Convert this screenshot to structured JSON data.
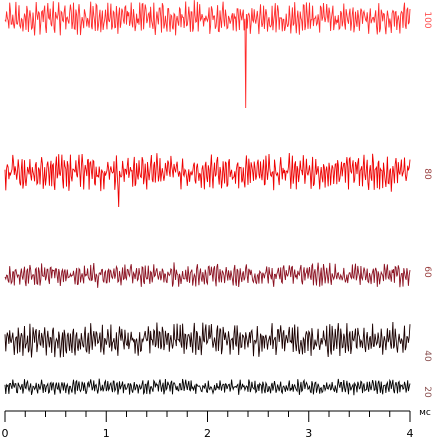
{
  "chart_data": {
    "type": "line",
    "title": "",
    "xlabel": "мс",
    "ylabel": "",
    "xlim": [
      0,
      4
    ],
    "ticks": [
      "0",
      "1",
      "2",
      "3",
      "4"
    ],
    "grid": false,
    "legend": "none",
    "channel_labels": [
      "100",
      "80",
      "60",
      "40",
      "20"
    ],
    "series": [
      {
        "level": 100,
        "color": "#ff2a2a",
        "amplitude": 15,
        "spike": {
          "x": 2.38,
          "depth": 90
        }
      },
      {
        "level": 80,
        "color": "#ee0000",
        "amplitude": 17,
        "spike": {
          "x": 1.12,
          "depth": 35
        }
      },
      {
        "level": 60,
        "color": "#8a1020",
        "amplitude": 11
      },
      {
        "level": 40,
        "color": "#1a0000",
        "amplitude": 15
      },
      {
        "level": 20,
        "color": "#000000",
        "amplitude": 7
      }
    ],
    "label_colors": [
      "#ff5050",
      "#9a4040",
      "#9a4040",
      "#8a5050",
      "#8a5050"
    ]
  }
}
